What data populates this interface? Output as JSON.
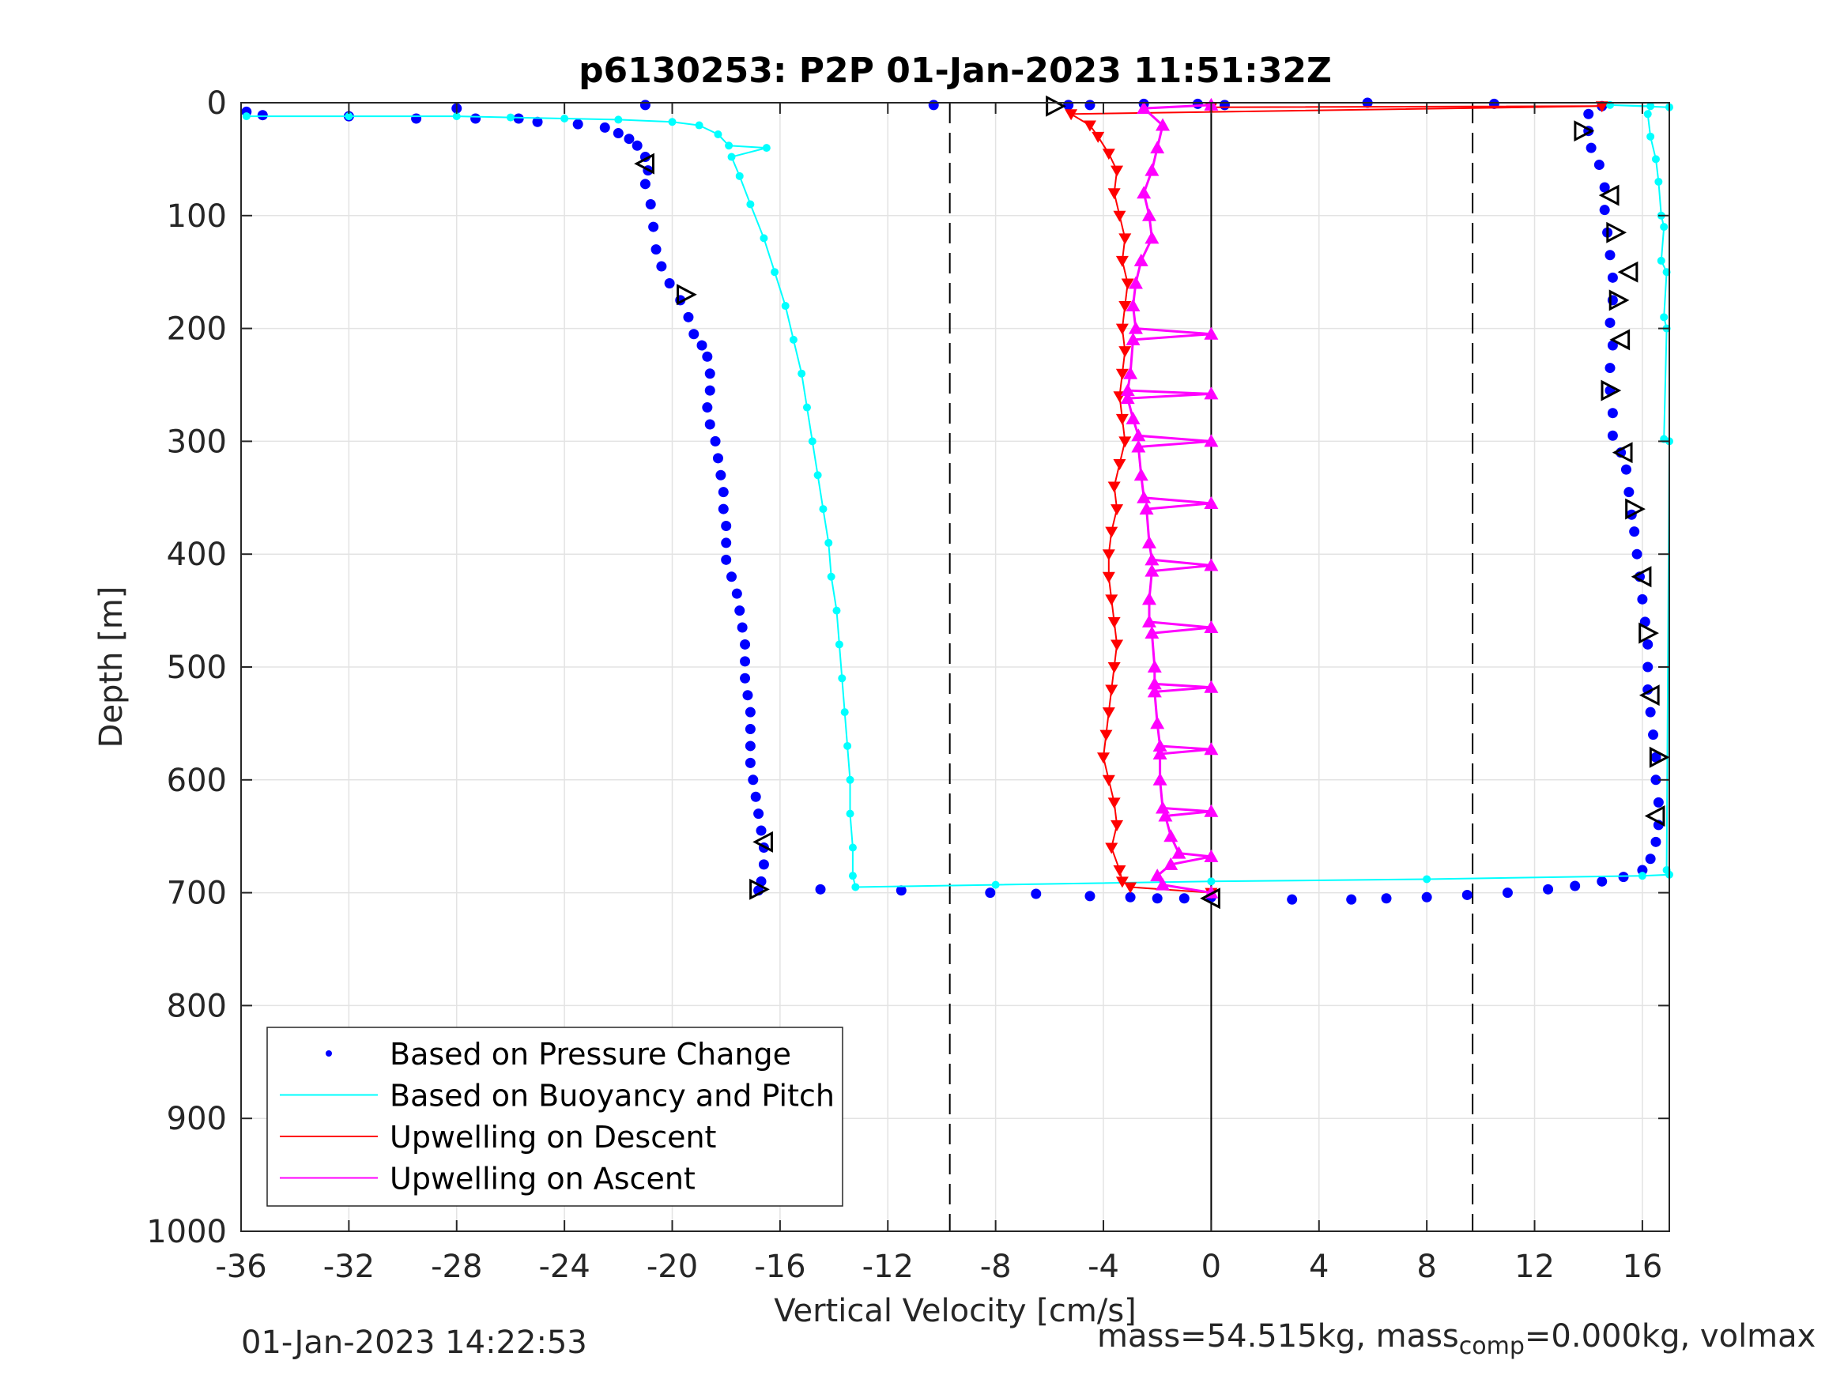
{
  "chart_data": {
    "type": "scatter",
    "title": "p6130253: P2P 01-Jan-2023 11:51:32Z",
    "xlabel": "Vertical Velocity [cm/s]",
    "ylabel": "Depth [m]",
    "xlim": [
      -36,
      17
    ],
    "ylim": [
      0,
      1000
    ],
    "y_reversed": true,
    "grid": true,
    "x_ticks": [
      -36,
      -32,
      -28,
      -24,
      -20,
      -16,
      -12,
      -8,
      -4,
      0,
      4,
      8,
      12,
      16
    ],
    "y_ticks": [
      0,
      100,
      200,
      300,
      400,
      500,
      600,
      700,
      800,
      900,
      1000
    ],
    "reference_lines": {
      "dashed_x": [
        -9.7,
        9.7
      ],
      "solid_x": [
        0
      ]
    },
    "legend_position": "bottom-left",
    "legend": [
      {
        "label": "Based on Pressure Change",
        "color": "#0000ff",
        "marker": "dot"
      },
      {
        "label": "Based on Buoyancy and Pitch",
        "color": "#00ffff",
        "marker": "line"
      },
      {
        "label": "Upwelling on Descent",
        "color": "#ff0000",
        "marker": "line"
      },
      {
        "label": "Upwelling on Ascent",
        "color": "#ff00ff",
        "marker": "line"
      }
    ],
    "series": [
      {
        "name": "Based on Pressure Change",
        "color": "#0000ff",
        "points": [
          [
            -35.8,
            8
          ],
          [
            -35.2,
            11
          ],
          [
            -28,
            5
          ],
          [
            -27.3,
            14
          ],
          [
            -32,
            12
          ],
          [
            -29.5,
            14
          ],
          [
            -25.7,
            14
          ],
          [
            -25,
            17
          ],
          [
            -23.5,
            19
          ],
          [
            -22.5,
            22
          ],
          [
            -22,
            27
          ],
          [
            -21.6,
            32
          ],
          [
            -21.3,
            38
          ],
          [
            -21,
            48
          ],
          [
            -20.9,
            60
          ],
          [
            -21,
            72
          ],
          [
            -20.8,
            90
          ],
          [
            -20.7,
            110
          ],
          [
            -20.6,
            130
          ],
          [
            -20.4,
            145
          ],
          [
            -20.1,
            160
          ],
          [
            -19.7,
            175
          ],
          [
            -19.4,
            190
          ],
          [
            -19.2,
            205
          ],
          [
            -18.9,
            215
          ],
          [
            -18.7,
            225
          ],
          [
            -18.6,
            240
          ],
          [
            -18.6,
            255
          ],
          [
            -18.7,
            270
          ],
          [
            -18.6,
            285
          ],
          [
            -18.4,
            300
          ],
          [
            -18.3,
            315
          ],
          [
            -18.2,
            330
          ],
          [
            -18.1,
            345
          ],
          [
            -18.1,
            360
          ],
          [
            -18,
            375
          ],
          [
            -18,
            390
          ],
          [
            -18,
            405
          ],
          [
            -17.8,
            420
          ],
          [
            -17.6,
            435
          ],
          [
            -17.5,
            450
          ],
          [
            -17.4,
            465
          ],
          [
            -17.3,
            480
          ],
          [
            -17.3,
            495
          ],
          [
            -17.3,
            510
          ],
          [
            -17.2,
            525
          ],
          [
            -17.1,
            540
          ],
          [
            -17.1,
            555
          ],
          [
            -17.1,
            570
          ],
          [
            -17.1,
            585
          ],
          [
            -17,
            600
          ],
          [
            -16.9,
            615
          ],
          [
            -16.8,
            630
          ],
          [
            -16.7,
            645
          ],
          [
            -16.6,
            660
          ],
          [
            -16.6,
            675
          ],
          [
            -16.7,
            690
          ],
          [
            -16.8,
            698
          ],
          [
            -14.5,
            697
          ],
          [
            -11.5,
            698
          ],
          [
            -8.2,
            700
          ],
          [
            -6.5,
            701
          ],
          [
            -4.5,
            703
          ],
          [
            -3,
            704
          ],
          [
            -2,
            705
          ],
          [
            -1,
            705
          ],
          [
            0,
            704
          ],
          [
            3,
            706
          ],
          [
            5.2,
            706
          ],
          [
            6.5,
            705
          ],
          [
            8,
            704
          ],
          [
            9.5,
            702
          ],
          [
            11,
            700
          ],
          [
            12.5,
            697
          ],
          [
            13.5,
            694
          ],
          [
            14.5,
            690
          ],
          [
            15.3,
            686
          ],
          [
            16,
            680
          ],
          [
            16.3,
            670
          ],
          [
            16.5,
            655
          ],
          [
            16.6,
            640
          ],
          [
            16.6,
            620
          ],
          [
            16.5,
            600
          ],
          [
            16.5,
            580
          ],
          [
            16.4,
            560
          ],
          [
            16.3,
            540
          ],
          [
            16.2,
            520
          ],
          [
            16.2,
            500
          ],
          [
            16.2,
            480
          ],
          [
            16.1,
            460
          ],
          [
            16,
            440
          ],
          [
            15.9,
            420
          ],
          [
            15.8,
            400
          ],
          [
            15.7,
            380
          ],
          [
            15.6,
            365
          ],
          [
            15.5,
            345
          ],
          [
            15.4,
            325
          ],
          [
            15.2,
            310
          ],
          [
            14.9,
            295
          ],
          [
            14.9,
            275
          ],
          [
            14.8,
            255
          ],
          [
            14.8,
            235
          ],
          [
            14.9,
            215
          ],
          [
            14.8,
            195
          ],
          [
            14.9,
            175
          ],
          [
            14.9,
            155
          ],
          [
            14.8,
            135
          ],
          [
            14.7,
            115
          ],
          [
            14.6,
            95
          ],
          [
            14.6,
            75
          ],
          [
            14.4,
            55
          ],
          [
            14.1,
            40
          ],
          [
            14,
            25
          ],
          [
            14,
            10
          ],
          [
            14.5,
            3
          ],
          [
            10.5,
            1
          ],
          [
            5.8,
            0
          ],
          [
            0.5,
            2
          ],
          [
            -0.5,
            1
          ],
          [
            -2.5,
            1
          ],
          [
            -4.5,
            2
          ],
          [
            -5.3,
            2
          ],
          [
            -10.3,
            2
          ],
          [
            -21,
            2
          ]
        ]
      },
      {
        "name": "Based on Buoyancy and Pitch",
        "color": "#00ffff",
        "points": [
          [
            -35.8,
            12
          ],
          [
            -32,
            12
          ],
          [
            -28,
            12
          ],
          [
            -26,
            13
          ],
          [
            -24,
            14
          ],
          [
            -22,
            15
          ],
          [
            -20,
            17
          ],
          [
            -19,
            20
          ],
          [
            -18.3,
            28
          ],
          [
            -17.9,
            38
          ],
          [
            -16.5,
            40
          ],
          [
            -17.8,
            48
          ],
          [
            -17.5,
            65
          ],
          [
            -17.1,
            90
          ],
          [
            -16.6,
            120
          ],
          [
            -16.2,
            150
          ],
          [
            -15.8,
            180
          ],
          [
            -15.5,
            210
          ],
          [
            -15.2,
            240
          ],
          [
            -15,
            270
          ],
          [
            -14.8,
            300
          ],
          [
            -14.6,
            330
          ],
          [
            -14.4,
            360
          ],
          [
            -14.2,
            390
          ],
          [
            -14.1,
            420
          ],
          [
            -13.9,
            450
          ],
          [
            -13.8,
            480
          ],
          [
            -13.7,
            510
          ],
          [
            -13.6,
            540
          ],
          [
            -13.5,
            570
          ],
          [
            -13.4,
            600
          ],
          [
            -13.4,
            630
          ],
          [
            -13.3,
            660
          ],
          [
            -13.3,
            685
          ],
          [
            -13.2,
            695
          ],
          [
            -8,
            693
          ],
          [
            0,
            690
          ],
          [
            8,
            688
          ],
          [
            16,
            685
          ],
          [
            17,
            684
          ],
          [
            16.9,
            680
          ],
          [
            17,
            300
          ],
          [
            16.8,
            298
          ],
          [
            16.9,
            200
          ],
          [
            16.8,
            190
          ],
          [
            16.9,
            150
          ],
          [
            16.7,
            140
          ],
          [
            16.8,
            110
          ],
          [
            16.7,
            100
          ],
          [
            16.6,
            70
          ],
          [
            16.5,
            50
          ],
          [
            16.3,
            30
          ],
          [
            16.2,
            10
          ],
          [
            16.3,
            3
          ],
          [
            14.8,
            2
          ],
          [
            17,
            4
          ]
        ]
      },
      {
        "name": "Upwelling on Descent",
        "color": "#ff0000",
        "points": [
          [
            0,
            4
          ],
          [
            14.5,
            3
          ],
          [
            -5.2,
            10
          ],
          [
            -4.5,
            20
          ],
          [
            -4.2,
            30
          ],
          [
            -3.8,
            45
          ],
          [
            -3.5,
            60
          ],
          [
            -3.6,
            80
          ],
          [
            -3.4,
            100
          ],
          [
            -3.2,
            120
          ],
          [
            -3.3,
            140
          ],
          [
            -3.1,
            160
          ],
          [
            -3.2,
            180
          ],
          [
            -3.3,
            200
          ],
          [
            -3.2,
            220
          ],
          [
            -3.3,
            240
          ],
          [
            -3.4,
            260
          ],
          [
            -3.3,
            280
          ],
          [
            -3.2,
            300
          ],
          [
            -3.4,
            320
          ],
          [
            -3.6,
            340
          ],
          [
            -3.5,
            360
          ],
          [
            -3.7,
            380
          ],
          [
            -3.8,
            400
          ],
          [
            -3.8,
            420
          ],
          [
            -3.7,
            440
          ],
          [
            -3.6,
            460
          ],
          [
            -3.5,
            480
          ],
          [
            -3.6,
            500
          ],
          [
            -3.7,
            520
          ],
          [
            -3.8,
            540
          ],
          [
            -3.9,
            560
          ],
          [
            -4,
            580
          ],
          [
            -3.8,
            600
          ],
          [
            -3.6,
            620
          ],
          [
            -3.5,
            640
          ],
          [
            -3.7,
            660
          ],
          [
            -3.4,
            680
          ],
          [
            -3.3,
            690
          ],
          [
            -3,
            695
          ],
          [
            0,
            700
          ]
        ]
      },
      {
        "name": "Upwelling on Ascent",
        "color": "#ff00ff",
        "points": [
          [
            0,
            2
          ],
          [
            -2.5,
            5
          ],
          [
            -1.8,
            20
          ],
          [
            -2,
            40
          ],
          [
            -2.2,
            60
          ],
          [
            -2.5,
            80
          ],
          [
            -2.3,
            100
          ],
          [
            -2.2,
            120
          ],
          [
            -2.6,
            140
          ],
          [
            -2.8,
            160
          ],
          [
            -2.9,
            180
          ],
          [
            -2.8,
            200
          ],
          [
            0,
            205
          ],
          [
            -2.9,
            210
          ],
          [
            -3,
            240
          ],
          [
            -3.1,
            255
          ],
          [
            0,
            258
          ],
          [
            -3.1,
            262
          ],
          [
            -2.9,
            280
          ],
          [
            -2.7,
            295
          ],
          [
            0,
            300
          ],
          [
            -2.7,
            305
          ],
          [
            -2.6,
            330
          ],
          [
            -2.5,
            350
          ],
          [
            0,
            355
          ],
          [
            -2.4,
            360
          ],
          [
            -2.3,
            390
          ],
          [
            -2.2,
            405
          ],
          [
            0,
            410
          ],
          [
            -2.2,
            415
          ],
          [
            -2.3,
            440
          ],
          [
            -2.3,
            460
          ],
          [
            0,
            465
          ],
          [
            -2.2,
            470
          ],
          [
            -2.1,
            500
          ],
          [
            -2.1,
            515
          ],
          [
            0,
            518
          ],
          [
            -2.1,
            522
          ],
          [
            -2,
            550
          ],
          [
            -1.9,
            570
          ],
          [
            0,
            573
          ],
          [
            -1.9,
            577
          ],
          [
            -1.9,
            600
          ],
          [
            -1.8,
            625
          ],
          [
            0,
            628
          ],
          [
            -1.7,
            632
          ],
          [
            -1.5,
            650
          ],
          [
            -1.2,
            665
          ],
          [
            0,
            668
          ],
          [
            -1.5,
            675
          ],
          [
            -2,
            685
          ],
          [
            -1.8,
            693
          ],
          [
            0,
            700
          ]
        ]
      },
      {
        "name": "markers",
        "color": "#000000",
        "points": [
          [
            -5.8,
            3
          ],
          [
            -21,
            54
          ],
          [
            -19.5,
            170
          ],
          [
            -16.6,
            655
          ],
          [
            -16.8,
            697
          ],
          [
            0,
            705
          ],
          [
            13.8,
            25
          ],
          [
            14.8,
            82
          ],
          [
            15,
            115
          ],
          [
            15.5,
            150
          ],
          [
            15.1,
            175
          ],
          [
            15.2,
            210
          ],
          [
            14.8,
            255
          ],
          [
            15.3,
            310
          ],
          [
            15.7,
            360
          ],
          [
            16,
            420
          ],
          [
            16.2,
            470
          ],
          [
            16.3,
            525
          ],
          [
            16.6,
            580
          ],
          [
            16.5,
            632
          ]
        ]
      }
    ]
  },
  "footer": {
    "left": "01-Jan-2023 14:22:53",
    "right_prefix": "mass=54.515kg, mass",
    "right_sub": "comp",
    "right_suffix": "=0.000kg, volmax"
  }
}
